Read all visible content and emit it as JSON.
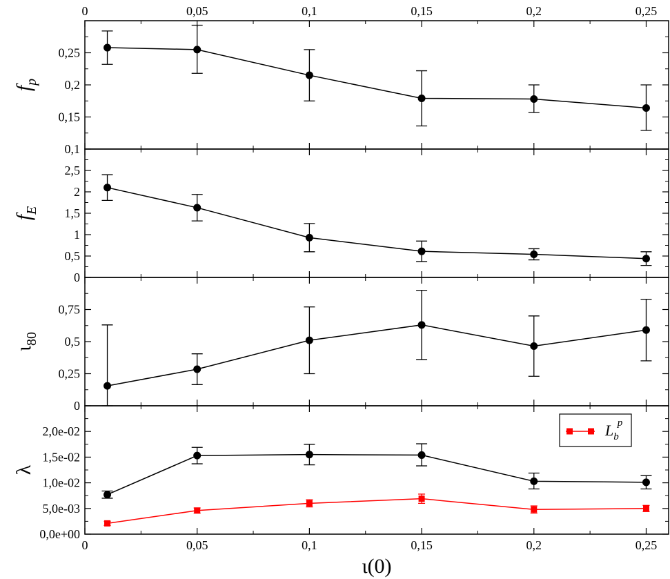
{
  "chart_data": [
    {
      "type": "line",
      "ylabel": "f",
      "ylabel_sub": "p",
      "x": [
        0.01,
        0.05,
        0.1,
        0.15,
        0.2,
        0.25
      ],
      "xlim": [
        0,
        0.26
      ],
      "ylim": [
        0.1,
        0.3
      ],
      "yticks": [
        0.1,
        0.15,
        0.2,
        0.25
      ],
      "ytick_labels": [
        "0,1",
        "0,15",
        "0,2",
        "0,25"
      ],
      "xticks": [
        0,
        0.05,
        0.1,
        0.15,
        0.2,
        0.25
      ],
      "xtick_labels_top": [
        "0",
        "0,05",
        "0,1",
        "0,15",
        "0,2",
        "0,25"
      ],
      "series": [
        {
          "color": "#000000",
          "marker": "circle",
          "values": [
            0.258,
            0.255,
            0.215,
            0.179,
            0.178,
            0.164
          ],
          "err_low": [
            0.026,
            0.037,
            0.04,
            0.043,
            0.021,
            0.035
          ],
          "err_high": [
            0.026,
            0.038,
            0.04,
            0.043,
            0.022,
            0.036
          ]
        }
      ]
    },
    {
      "type": "line",
      "ylabel": "f",
      "ylabel_sub": "E",
      "x": [
        0.01,
        0.05,
        0.1,
        0.15,
        0.2,
        0.25
      ],
      "xlim": [
        0,
        0.26
      ],
      "ylim": [
        0,
        3
      ],
      "yticks": [
        0,
        0.5,
        1,
        1.5,
        2,
        2.5
      ],
      "ytick_labels": [
        "0",
        "0,5",
        "1",
        "1,5",
        "2",
        "2,5"
      ],
      "series": [
        {
          "color": "#000000",
          "marker": "circle",
          "values": [
            2.1,
            1.63,
            0.93,
            0.61,
            0.54,
            0.44
          ],
          "err_low": [
            0.3,
            0.31,
            0.33,
            0.24,
            0.13,
            0.16
          ],
          "err_high": [
            0.3,
            0.31,
            0.33,
            0.24,
            0.13,
            0.16
          ]
        }
      ]
    },
    {
      "type": "line",
      "ylabel": "ι",
      "ylabel_sub": "80",
      "x": [
        0.01,
        0.05,
        0.1,
        0.15,
        0.2,
        0.25
      ],
      "xlim": [
        0,
        0.26
      ],
      "ylim": [
        0,
        1
      ],
      "yticks": [
        0,
        0.25,
        0.5,
        0.75
      ],
      "ytick_labels": [
        "0",
        "0,25",
        "0,5",
        "0,75"
      ],
      "series": [
        {
          "color": "#000000",
          "marker": "circle",
          "values": [
            0.155,
            0.285,
            0.51,
            0.63,
            0.465,
            0.59
          ],
          "err_low": [
            0.155,
            0.12,
            0.26,
            0.27,
            0.235,
            0.24
          ],
          "err_high": [
            0.475,
            0.12,
            0.26,
            0.27,
            0.235,
            0.24
          ]
        }
      ]
    },
    {
      "type": "line",
      "ylabel": "λ",
      "xlabel": "ι(0)",
      "x": [
        0.01,
        0.05,
        0.1,
        0.15,
        0.2,
        0.25
      ],
      "xlim": [
        0,
        0.26
      ],
      "ylim": [
        0,
        0.025
      ],
      "yticks": [
        0,
        0.005,
        0.01,
        0.015,
        0.02
      ],
      "ytick_labels": [
        "0,0e+00",
        "5,0e-03",
        "1,0e-02",
        "1,5e-02",
        "2,0e-02"
      ],
      "xticks": [
        0,
        0.05,
        0.1,
        0.15,
        0.2,
        0.25
      ],
      "xtick_labels": [
        "0",
        "0,05",
        "0,1",
        "0,15",
        "0,2",
        "0,25"
      ],
      "legend": {
        "position": "top-right",
        "label": "L",
        "label_sub": "b",
        "label_sup": "p"
      },
      "series": [
        {
          "color": "#000000",
          "marker": "circle",
          "values": [
            0.0077,
            0.0153,
            0.0155,
            0.0154,
            0.0103,
            0.0101
          ],
          "err_low": [
            0.0007,
            0.0016,
            0.002,
            0.0021,
            0.0015,
            0.0013
          ],
          "err_high": [
            0.0007,
            0.0016,
            0.002,
            0.0022,
            0.0016,
            0.0013
          ]
        },
        {
          "name": "L_b^p",
          "color": "#ff0000",
          "marker": "square",
          "values": [
            0.0021,
            0.0046,
            0.006,
            0.0069,
            0.0048,
            0.005
          ],
          "err_low": [
            0.0004,
            0.0005,
            0.0007,
            0.0009,
            0.0007,
            0.0006
          ],
          "err_high": [
            0.0004,
            0.0005,
            0.0007,
            0.0009,
            0.0007,
            0.0006
          ]
        }
      ]
    }
  ]
}
